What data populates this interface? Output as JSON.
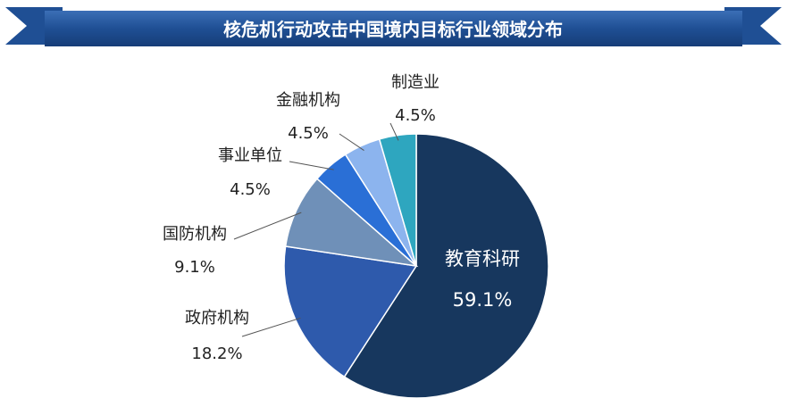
{
  "chart_data": {
    "type": "pie",
    "title": "核危机行动攻击中国境内目标行业领域分布",
    "start_angle_deg": 0,
    "direction": "clockwise",
    "slices": [
      {
        "name": "教育科研",
        "value": 59.1,
        "value_label": "59.1%",
        "color": "#17375e",
        "label_position": "inside"
      },
      {
        "name": "政府机构",
        "value": 18.2,
        "value_label": "18.2%",
        "color": "#2e5aac",
        "label_position": "outside-left"
      },
      {
        "name": "国防机构",
        "value": 9.1,
        "value_label": "9.1%",
        "color": "#6f90b8",
        "label_position": "outside-left"
      },
      {
        "name": "事业单位",
        "value": 4.5,
        "value_label": "4.5%",
        "color": "#2a6fd6",
        "label_position": "outside-left"
      },
      {
        "name": "金融机构",
        "value": 4.5,
        "value_label": "4.5%",
        "color": "#8cb4ee",
        "label_position": "outside-top"
      },
      {
        "name": "制造业",
        "value": 4.5,
        "value_label": "4.5%",
        "color": "#2ea6bf",
        "label_position": "outside-top"
      }
    ]
  }
}
